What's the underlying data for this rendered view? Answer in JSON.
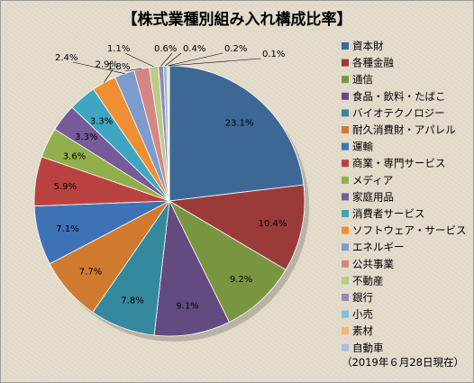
{
  "chart_data": {
    "type": "pie",
    "title": "【株式業種別組み入れ構成比率】",
    "note": "（2019年６月28日現在）",
    "legend_position": "right",
    "slices": [
      {
        "label": "資本財",
        "value": 23.1,
        "value_label": "23.1%",
        "color": "#3d6896"
      },
      {
        "label": "各種金融",
        "value": 10.4,
        "value_label": "10.4%",
        "color": "#9a3b3a"
      },
      {
        "label": "通信",
        "value": 9.2,
        "value_label": "9.2%",
        "color": "#7a9540"
      },
      {
        "label": "食品・飲料・たばこ",
        "value": 9.1,
        "value_label": "9.1%",
        "color": "#634b82"
      },
      {
        "label": "バイオテクノロジー",
        "value": 7.8,
        "value_label": "7.8%",
        "color": "#34899e"
      },
      {
        "label": "耐久消費財・アパレル",
        "value": 7.7,
        "value_label": "7.7%",
        "color": "#cf7a2e"
      },
      {
        "label": "運輸",
        "value": 7.1,
        "value_label": "7.1%",
        "color": "#3e72b6"
      },
      {
        "label": "商業・専門サービス",
        "value": 5.9,
        "value_label": "5.9%",
        "color": "#b94241"
      },
      {
        "label": "メディア",
        "value": 3.6,
        "value_label": "3.6%",
        "color": "#93ae4c"
      },
      {
        "label": "家庭用品",
        "value": 3.3,
        "value_label": "3.3%",
        "color": "#775a9a"
      },
      {
        "label": "消費者サービス",
        "value": 3.3,
        "value_label": "3.3%",
        "color": "#3ea6c0"
      },
      {
        "label": "ソフトウェア・サービス",
        "value": 2.9,
        "value_label": "2.9%",
        "color": "#ee8f34"
      },
      {
        "label": "エネルギー",
        "value": 2.4,
        "value_label": "2.4%",
        "color": "#7d9ccd"
      },
      {
        "label": "公共事業",
        "value": 1.8,
        "value_label": "1.8%",
        "color": "#d48682"
      },
      {
        "label": "不動産",
        "value": 1.1,
        "value_label": "1.1%",
        "color": "#b6cd88"
      },
      {
        "label": "銀行",
        "value": 0.6,
        "value_label": "0.6%",
        "color": "#9987b6"
      },
      {
        "label": "小売",
        "value": 0.4,
        "value_label": "0.4%",
        "color": "#7fc4d6"
      },
      {
        "label": "素材",
        "value": 0.2,
        "value_label": "0.2%",
        "color": "#f4b37d"
      },
      {
        "label": "自動車",
        "value": 0.1,
        "value_label": "0.1%",
        "color": "#a8bde0"
      }
    ]
  }
}
